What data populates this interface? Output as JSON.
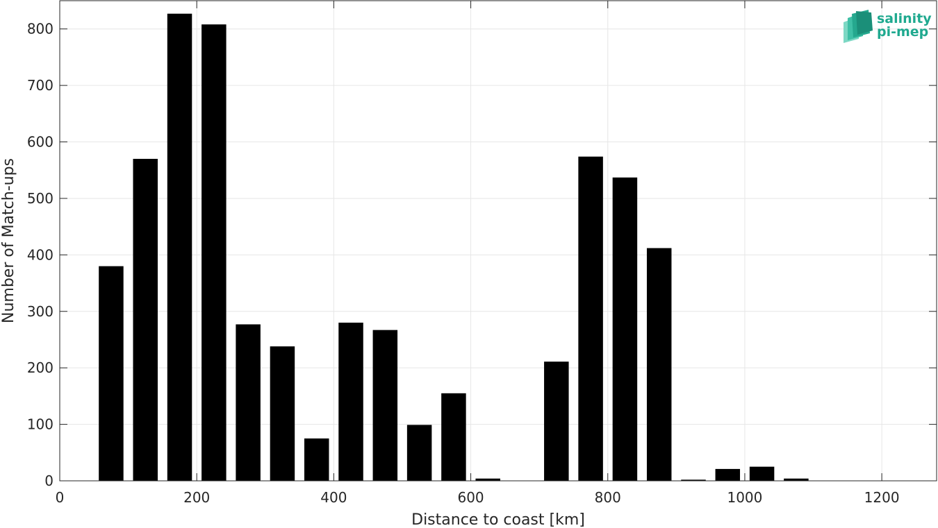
{
  "chart_data": {
    "type": "bar",
    "title": "",
    "xlabel": "Distance to coast [km]",
    "ylabel": "Number of Match-ups",
    "xlim": [
      0,
      1280
    ],
    "ylim": [
      0,
      850
    ],
    "grid": true,
    "bin_width": 50,
    "x": [
      75,
      125,
      175,
      225,
      275,
      325,
      375,
      425,
      475,
      525,
      575,
      625,
      675,
      725,
      775,
      825,
      875,
      925,
      975,
      1025,
      1075
    ],
    "values": [
      380,
      570,
      827,
      808,
      277,
      238,
      75,
      280,
      267,
      99,
      155,
      4,
      0,
      211,
      574,
      537,
      412,
      2,
      21,
      25,
      4
    ],
    "xticks": [
      0,
      200,
      400,
      600,
      800,
      1000,
      1200
    ],
    "yticks": [
      0,
      100,
      200,
      300,
      400,
      500,
      600,
      700,
      800
    ],
    "bar_color": "#000000"
  },
  "logo": {
    "line1": "salinity",
    "line2": "pi-mep",
    "color": "#1fa98f"
  }
}
